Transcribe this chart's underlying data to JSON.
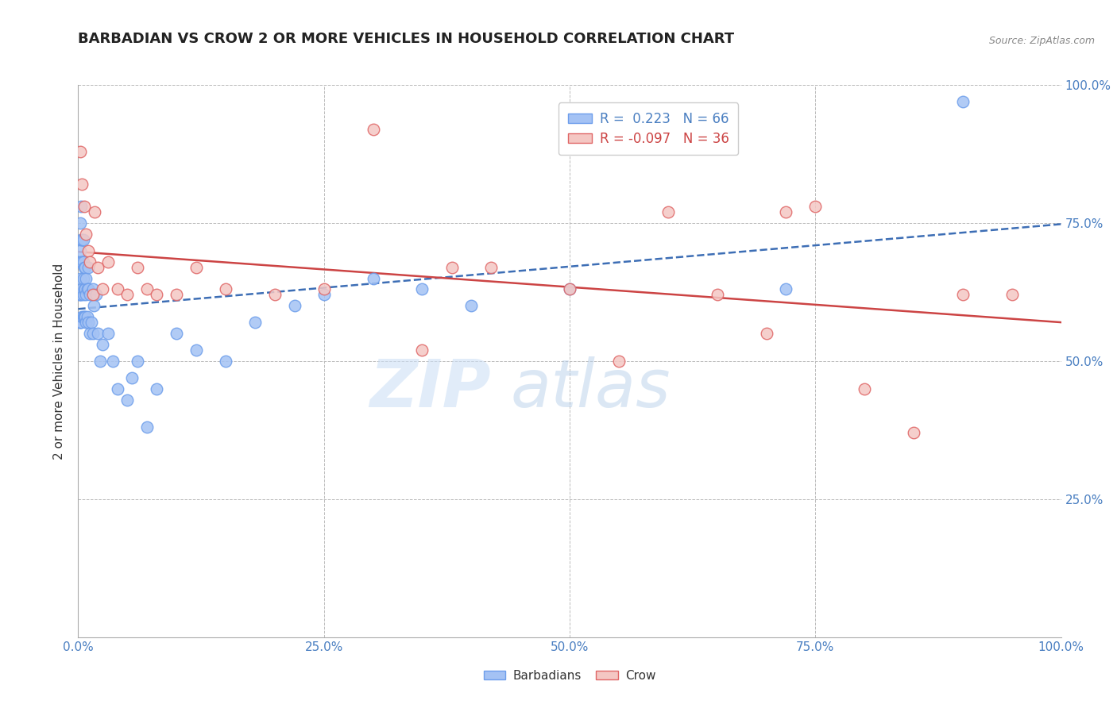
{
  "title": "BARBADIAN VS CROW 2 OR MORE VEHICLES IN HOUSEHOLD CORRELATION CHART",
  "source": "Source: ZipAtlas.com",
  "ylabel": "2 or more Vehicles in Household",
  "xlim": [
    0.0,
    1.0
  ],
  "ylim": [
    0.0,
    1.0
  ],
  "blue_R": "0.223",
  "blue_N": "66",
  "pink_R": "-0.097",
  "pink_N": "36",
  "blue_color": "#a4c2f4",
  "pink_color": "#f4c7c3",
  "blue_edge_color": "#6d9eeb",
  "pink_edge_color": "#e06666",
  "blue_line_color": "#3d6eb5",
  "pink_line_color": "#cc4444",
  "grid_color": "#bbbbbb",
  "blue_points_x": [
    0.001,
    0.001,
    0.001,
    0.002,
    0.002,
    0.002,
    0.002,
    0.002,
    0.003,
    0.003,
    0.003,
    0.003,
    0.003,
    0.004,
    0.004,
    0.004,
    0.004,
    0.005,
    0.005,
    0.005,
    0.005,
    0.005,
    0.006,
    0.006,
    0.006,
    0.007,
    0.007,
    0.007,
    0.008,
    0.008,
    0.008,
    0.009,
    0.009,
    0.01,
    0.01,
    0.01,
    0.012,
    0.012,
    0.013,
    0.015,
    0.015,
    0.016,
    0.018,
    0.02,
    0.022,
    0.025,
    0.03,
    0.035,
    0.04,
    0.05,
    0.055,
    0.06,
    0.07,
    0.08,
    0.1,
    0.12,
    0.15,
    0.18,
    0.22,
    0.25,
    0.3,
    0.35,
    0.4,
    0.5,
    0.72,
    0.9
  ],
  "blue_points_y": [
    0.68,
    0.62,
    0.57,
    0.75,
    0.7,
    0.65,
    0.62,
    0.57,
    0.78,
    0.72,
    0.68,
    0.62,
    0.57,
    0.72,
    0.68,
    0.63,
    0.58,
    0.72,
    0.68,
    0.65,
    0.62,
    0.58,
    0.67,
    0.63,
    0.58,
    0.67,
    0.63,
    0.58,
    0.65,
    0.62,
    0.57,
    0.63,
    0.58,
    0.67,
    0.63,
    0.57,
    0.62,
    0.55,
    0.57,
    0.63,
    0.55,
    0.6,
    0.62,
    0.55,
    0.5,
    0.53,
    0.55,
    0.5,
    0.45,
    0.43,
    0.47,
    0.5,
    0.38,
    0.45,
    0.55,
    0.52,
    0.5,
    0.57,
    0.6,
    0.62,
    0.65,
    0.63,
    0.6,
    0.63,
    0.63,
    0.97
  ],
  "pink_points_x": [
    0.002,
    0.004,
    0.006,
    0.008,
    0.01,
    0.012,
    0.015,
    0.017,
    0.02,
    0.025,
    0.03,
    0.04,
    0.05,
    0.06,
    0.07,
    0.08,
    0.1,
    0.12,
    0.15,
    0.2,
    0.25,
    0.3,
    0.35,
    0.38,
    0.42,
    0.5,
    0.55,
    0.6,
    0.65,
    0.7,
    0.72,
    0.75,
    0.8,
    0.85,
    0.9,
    0.95
  ],
  "pink_points_y": [
    0.88,
    0.82,
    0.78,
    0.73,
    0.7,
    0.68,
    0.62,
    0.77,
    0.67,
    0.63,
    0.68,
    0.63,
    0.62,
    0.67,
    0.63,
    0.62,
    0.62,
    0.67,
    0.63,
    0.62,
    0.63,
    0.92,
    0.52,
    0.67,
    0.67,
    0.63,
    0.5,
    0.77,
    0.62,
    0.55,
    0.77,
    0.78,
    0.45,
    0.37,
    0.62,
    0.62
  ]
}
